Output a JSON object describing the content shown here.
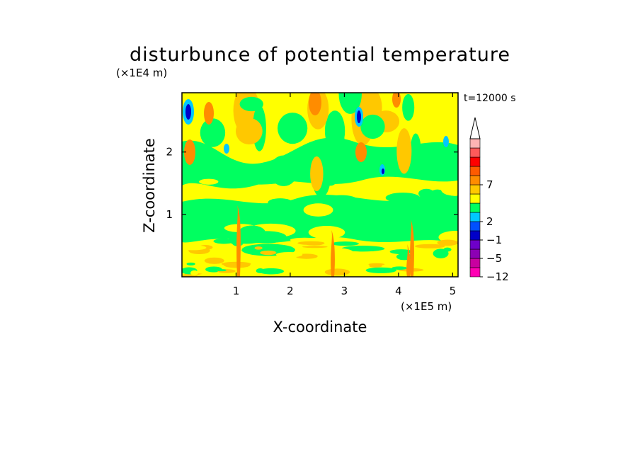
{
  "chart_data": {
    "type": "heatmap",
    "title": "disturbunce of potential temperature",
    "xlabel": "X-coordinate",
    "ylabel": "Z-coordinate",
    "x_unit": "(×1E5 m)",
    "y_unit": "(×1E4 m)",
    "time_label": "t=12000 s",
    "xlim": [
      0,
      5.1
    ],
    "ylim": [
      0,
      2.95
    ],
    "x_ticks": [
      {
        "value": 1,
        "label": "1"
      },
      {
        "value": 2,
        "label": "2"
      },
      {
        "value": 3,
        "label": "3"
      },
      {
        "value": 4,
        "label": "4"
      },
      {
        "value": 5,
        "label": "5"
      }
    ],
    "y_ticks": [
      {
        "value": 1,
        "label": "1"
      },
      {
        "value": 2,
        "label": "2"
      }
    ],
    "colorbar": {
      "labels": [
        {
          "level": 10,
          "label": "7"
        },
        {
          "level": 6,
          "label": "2"
        },
        {
          "level": 4,
          "label": "−1"
        },
        {
          "level": 2,
          "label": "−5"
        },
        {
          "level": 0,
          "label": "−12"
        }
      ],
      "colors": [
        "#ff00b4",
        "#c800a0",
        "#8c00b4",
        "#6e00c8",
        "#0000c8",
        "#0050ff",
        "#00c8ff",
        "#00ff60",
        "#ffff00",
        "#ffc800",
        "#ff8c00",
        "#ff5a00",
        "#ff0000",
        "#ff5a5a",
        "#ffb4b4"
      ],
      "extend_color": "#ffffff"
    },
    "field_colors": {
      "background": "#ffff00",
      "green": "#00ff60",
      "orange": "#ffc800",
      "dark_orange": "#ff8c00",
      "cyan": "#00c8ff",
      "blue": "#0050ff",
      "navy": "#0000c8",
      "red": "#ff5a00"
    }
  }
}
